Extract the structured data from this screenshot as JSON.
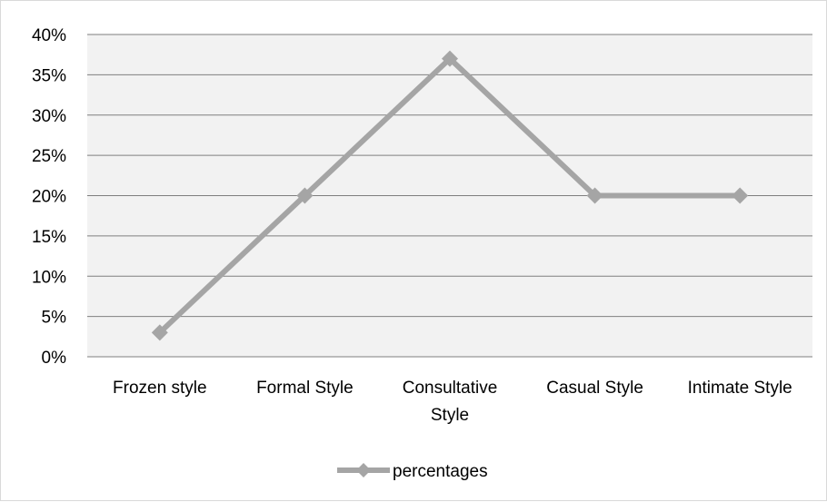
{
  "chart_data": {
    "type": "line",
    "title": "",
    "xlabel": "",
    "ylabel": "",
    "categories": [
      "Frozen style",
      "Formal Style",
      "Consultative Style",
      "Casual Style",
      "Intimate Style"
    ],
    "series": [
      {
        "name": "percentages",
        "values": [
          3,
          20,
          37,
          20,
          20
        ]
      }
    ],
    "y_ticks": [
      "0%",
      "5%",
      "10%",
      "15%",
      "20%",
      "25%",
      "30%",
      "35%",
      "40%"
    ],
    "ylim": [
      0,
      40
    ],
    "grid": "horizontal",
    "legend_position": "bottom",
    "colors": {
      "plot_background": "#f2f2f2",
      "series": "#a5a5a5",
      "gridline": "#7f7f7f",
      "frame": "#d9d9d9"
    }
  }
}
